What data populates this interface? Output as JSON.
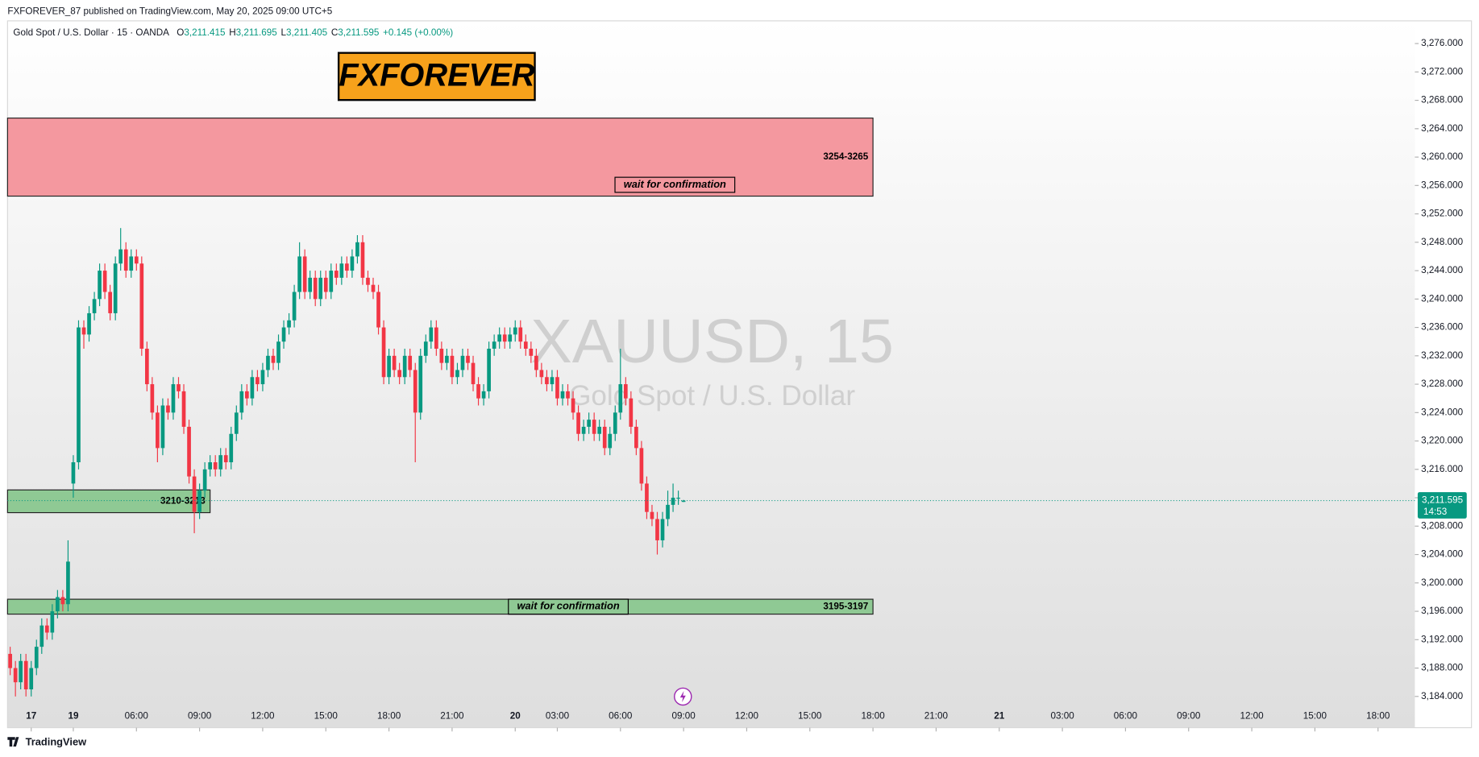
{
  "header": {
    "publisher": "FXFOREVER_87 published on TradingView.com, May 20, 2025 09:00 UTC+5",
    "symbol": "Gold Spot / U.S. Dollar · 15 · OANDA",
    "ohlc": [
      {
        "label": "O",
        "value": "3,211.415"
      },
      {
        "label": "H",
        "value": "3,211.695"
      },
      {
        "label": "L",
        "value": "3,211.405"
      },
      {
        "label": "C",
        "value": "3,211.595"
      }
    ],
    "change": "+0.145 (+0.00%)"
  },
  "banner": "FXFOREVER",
  "watermark": {
    "title": "XAUUSD, 15",
    "subtitle": "Gold Spot / U.S. Dollar"
  },
  "chart_data": {
    "type": "candlestick",
    "up_color": "#089981",
    "down_color": "#f23645",
    "open": [
      3190,
      3188,
      3186,
      3189,
      3185,
      3188,
      3191,
      3194,
      3193,
      3196,
      3198,
      3197,
      3214,
      3217,
      3236,
      3235,
      3238,
      3240,
      3244,
      3241,
      3238,
      3245,
      3247,
      3244,
      3246,
      3245,
      3233,
      3228,
      3224,
      3219,
      3225,
      3224,
      3228,
      3227,
      3222,
      3215,
      3210,
      3213,
      3216,
      3217,
      3216,
      3218,
      3217,
      3221,
      3224,
      3227,
      3226,
      3229,
      3228,
      3230,
      3232,
      3231,
      3234,
      3236,
      3237,
      3241,
      3246,
      3241,
      3243,
      3240,
      3243,
      3241,
      3244,
      3243,
      3245,
      3244,
      3246,
      3248,
      3243,
      3242,
      3241,
      3236,
      3229,
      3232,
      3230,
      3229,
      3232,
      3230,
      3224,
      3232,
      3234,
      3236,
      3233,
      3231,
      3232,
      3229,
      3230,
      3232,
      3231,
      3228,
      3226,
      3227,
      3233,
      3234,
      3235,
      3234,
      3235,
      3236,
      3234,
      3233,
      3232,
      3230,
      3229,
      3228,
      3229,
      3226,
      3227,
      3226,
      3224,
      3221,
      3222,
      3223,
      3221,
      3222,
      3219,
      3221,
      3224,
      3228,
      3226,
      3222,
      3219,
      3214,
      3210,
      3209,
      3206,
      3209,
      3211,
      3212,
      3211.415
    ],
    "high": [
      3191,
      3189,
      3190,
      3190,
      3189,
      3192,
      3195,
      3195,
      3197,
      3199,
      3199,
      3206,
      3218,
      3237,
      3237,
      3239,
      3241,
      3245,
      3245,
      3242,
      3246,
      3250,
      3248,
      3247,
      3247,
      3246,
      3234,
      3229,
      3225,
      3226,
      3226,
      3229,
      3229,
      3228,
      3223,
      3216,
      3214,
      3217,
      3218,
      3218,
      3219,
      3219,
      3222,
      3225,
      3228,
      3228,
      3230,
      3230,
      3231,
      3233,
      3233,
      3235,
      3237,
      3238,
      3242,
      3248,
      3247,
      3244,
      3244,
      3244,
      3244,
      3245,
      3245,
      3246,
      3246,
      3247,
      3249,
      3249,
      3244,
      3243,
      3242,
      3237,
      3233,
      3233,
      3231,
      3233,
      3233,
      3231,
      3233,
      3235,
      3237,
      3237,
      3234,
      3233,
      3233,
      3231,
      3233,
      3233,
      3232,
      3229,
      3228,
      3234,
      3235,
      3236,
      3236,
      3236,
      3237,
      3237,
      3235,
      3234,
      3233,
      3231,
      3230,
      3230,
      3230,
      3228,
      3228,
      3227,
      3225,
      3223,
      3224,
      3224,
      3223,
      3223,
      3222,
      3225,
      3233,
      3229,
      3227,
      3223,
      3220,
      3215,
      3211,
      3210,
      3210,
      3213,
      3214,
      3213,
      3211.695
    ],
    "low": [
      3187,
      3184,
      3185,
      3184,
      3184,
      3187,
      3190,
      3192,
      3192,
      3195,
      3196,
      3196,
      3212,
      3216,
      3233,
      3234,
      3237,
      3239,
      3240,
      3237,
      3237,
      3244,
      3243,
      3243,
      3244,
      3232,
      3227,
      3223,
      3217,
      3218,
      3223,
      3223,
      3226,
      3221,
      3214,
      3207,
      3209,
      3212,
      3215,
      3215,
      3215,
      3216,
      3216,
      3220,
      3223,
      3225,
      3225,
      3227,
      3227,
      3229,
      3230,
      3230,
      3233,
      3235,
      3236,
      3240,
      3240,
      3240,
      3239,
      3239,
      3240,
      3240,
      3242,
      3242,
      3243,
      3243,
      3245,
      3242,
      3241,
      3240,
      3235,
      3228,
      3228,
      3229,
      3228,
      3228,
      3229,
      3217,
      3223,
      3231,
      3233,
      3232,
      3230,
      3230,
      3228,
      3228,
      3229,
      3230,
      3227,
      3225,
      3225,
      3226,
      3232,
      3233,
      3233,
      3233,
      3234,
      3233,
      3232,
      3231,
      3229,
      3228,
      3227,
      3227,
      3225,
      3225,
      3225,
      3223,
      3220,
      3220,
      3221,
      3220,
      3220,
      3218,
      3218,
      3220,
      3223,
      3225,
      3221,
      3218,
      3213,
      3209,
      3208,
      3204,
      3205,
      3208,
      3210,
      3211,
      3211.405
    ],
    "close": [
      3188,
      3186,
      3189,
      3185,
      3188,
      3191,
      3194,
      3193,
      3196,
      3198,
      3197,
      3203,
      3217,
      3236,
      3235,
      3238,
      3240,
      3244,
      3241,
      3238,
      3245,
      3247,
      3244,
      3246,
      3245,
      3233,
      3228,
      3224,
      3219,
      3225,
      3224,
      3228,
      3227,
      3222,
      3215,
      3210,
      3213,
      3216,
      3217,
      3216,
      3218,
      3217,
      3221,
      3224,
      3227,
      3226,
      3229,
      3228,
      3230,
      3232,
      3231,
      3234,
      3236,
      3237,
      3241,
      3246,
      3241,
      3243,
      3240,
      3243,
      3241,
      3244,
      3243,
      3245,
      3244,
      3246,
      3248,
      3243,
      3242,
      3241,
      3236,
      3229,
      3232,
      3230,
      3229,
      3232,
      3230,
      3224,
      3232,
      3234,
      3236,
      3233,
      3231,
      3232,
      3229,
      3230,
      3232,
      3231,
      3228,
      3226,
      3227,
      3233,
      3234,
      3235,
      3234,
      3235,
      3236,
      3234,
      3233,
      3232,
      3230,
      3229,
      3228,
      3229,
      3226,
      3227,
      3226,
      3224,
      3221,
      3222,
      3223,
      3221,
      3222,
      3219,
      3221,
      3224,
      3228,
      3226,
      3222,
      3219,
      3214,
      3210,
      3209,
      3206,
      3209,
      3211,
      3212,
      3212,
      3211.595
    ],
    "xlim": [
      -0.5,
      267
    ],
    "xticks": [
      {
        "value": 4,
        "label": "17"
      },
      {
        "value": 12,
        "label": "19"
      },
      {
        "value": 24,
        "label": "06:00"
      },
      {
        "value": 36,
        "label": "09:00"
      },
      {
        "value": 48,
        "label": "12:00"
      },
      {
        "value": 60,
        "label": "15:00"
      },
      {
        "value": 72,
        "label": "18:00"
      },
      {
        "value": 84,
        "label": "21:00"
      },
      {
        "value": 96,
        "label": "20"
      },
      {
        "value": 104,
        "label": "03:00"
      },
      {
        "value": 116,
        "label": "06:00"
      },
      {
        "value": 128,
        "label": "09:00"
      },
      {
        "value": 140,
        "label": "12:00"
      },
      {
        "value": 152,
        "label": "15:00"
      },
      {
        "value": 164,
        "label": "18:00"
      },
      {
        "value": 176,
        "label": "21:00"
      },
      {
        "value": 188,
        "label": "21"
      },
      {
        "value": 200,
        "label": "03:00"
      },
      {
        "value": 212,
        "label": "06:00"
      },
      {
        "value": 224,
        "label": "09:00"
      },
      {
        "value": 236,
        "label": "12:00"
      },
      {
        "value": 248,
        "label": "15:00"
      },
      {
        "value": 260,
        "label": "18:00"
      }
    ],
    "ylim": [
      3179.6,
      3279.2
    ],
    "yticks": [
      {
        "value": 3184,
        "label": "3,184.000"
      },
      {
        "value": 3188,
        "label": "3,188.000"
      },
      {
        "value": 3192,
        "label": "3,192.000"
      },
      {
        "value": 3196,
        "label": "3,196.000"
      },
      {
        "value": 3200,
        "label": "3,200.000"
      },
      {
        "value": 3204,
        "label": "3,204.000"
      },
      {
        "value": 3208,
        "label": "3,208.000"
      },
      {
        "value": 3212,
        "label": "3,212.000"
      },
      {
        "value": 3216,
        "label": "3,216.000"
      },
      {
        "value": 3220,
        "label": "3,220.000"
      },
      {
        "value": 3224,
        "label": "3,224.000"
      },
      {
        "value": 3228,
        "label": "3,228.000"
      },
      {
        "value": 3232,
        "label": "3,232.000"
      },
      {
        "value": 3236,
        "label": "3,236.000"
      },
      {
        "value": 3240,
        "label": "3,240.000"
      },
      {
        "value": 3244,
        "label": "3,244.000"
      },
      {
        "value": 3248,
        "label": "3,248.000"
      },
      {
        "value": 3252,
        "label": "3,252.000"
      },
      {
        "value": 3256,
        "label": "3,256.000"
      },
      {
        "value": 3260,
        "label": "3,260.000"
      },
      {
        "value": 3264,
        "label": "3,264.000"
      },
      {
        "value": 3268,
        "label": "3,268.000"
      },
      {
        "value": 3272,
        "label": "3,272.000"
      },
      {
        "value": 3276,
        "label": "3,276.000"
      }
    ],
    "last_price": {
      "value": 3211.595,
      "label": "3,211.595",
      "countdown": "14:53"
    },
    "zones": [
      {
        "ylim": [
          3254.5,
          3265.5
        ],
        "xlim": [
          -0.5,
          164
        ],
        "color": "#f4989f",
        "label": "3254-3265",
        "note": "wait for confirmation"
      },
      {
        "ylim": [
          3209.9,
          3213.1
        ],
        "xlim": [
          -0.5,
          38
        ],
        "color": "#8fc994",
        "label": "3210-3213"
      },
      {
        "ylim": [
          3195.6,
          3197.7
        ],
        "xlim": [
          -0.5,
          164
        ],
        "color": "#8fc994",
        "label": "3195-3197",
        "note": "wait for confirmation"
      }
    ]
  },
  "footer": "TradingView"
}
